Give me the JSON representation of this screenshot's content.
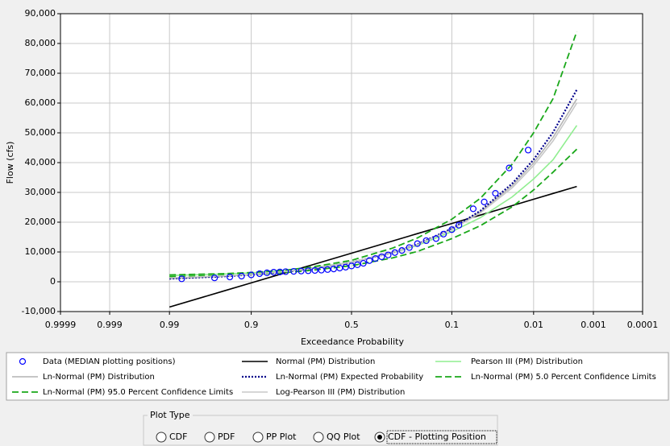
{
  "chart_data": {
    "type": "line",
    "xlabel": "Exceedance Probability",
    "ylabel": "Flow (cfs)",
    "xscale": "normal-probability",
    "xlim": [
      0.9999,
      0.0001
    ],
    "xticks": [
      0.9999,
      0.999,
      0.99,
      0.9,
      0.5,
      0.1,
      0.01,
      0.001,
      0.0001
    ],
    "ylim": [
      -10000,
      90000
    ],
    "yticks": [
      {
        "value": -10000,
        "label": "-10,000"
      },
      0,
      {
        "value": 10000,
        "label": "10,000"
      },
      {
        "value": 20000,
        "label": "20,000"
      },
      {
        "value": 30000,
        "label": "30,000"
      },
      {
        "value": 40000,
        "label": "40,000"
      },
      {
        "value": 50000,
        "label": "50,000"
      },
      {
        "value": 60000,
        "label": "60,000"
      },
      {
        "value": 70000,
        "label": "70,000"
      },
      {
        "value": 80000,
        "label": "80,000"
      },
      {
        "value": 90000,
        "label": "90,000"
      }
    ],
    "grid": true,
    "series": [
      {
        "name": "Data (MEDIAN plotting positions)",
        "color": "#0000ff",
        "style": "marker",
        "x": [
          0.985,
          0.96,
          0.94,
          0.92,
          0.9,
          0.88,
          0.86,
          0.84,
          0.82,
          0.8,
          0.77,
          0.74,
          0.71,
          0.68,
          0.65,
          0.62,
          0.59,
          0.56,
          0.53,
          0.5,
          0.47,
          0.44,
          0.41,
          0.38,
          0.35,
          0.32,
          0.29,
          0.26,
          0.23,
          0.2,
          0.17,
          0.14,
          0.12,
          0.1,
          0.085,
          0.06,
          0.045,
          0.033,
          0.022,
          0.012
        ],
        "values": [
          1000,
          1300,
          1600,
          1900,
          2300,
          2700,
          3000,
          3200,
          3300,
          3400,
          3500,
          3600,
          3700,
          3800,
          3900,
          4100,
          4300,
          4600,
          4900,
          5300,
          5700,
          6200,
          7100,
          7800,
          8400,
          9000,
          9800,
          10500,
          11500,
          12800,
          13800,
          14500,
          16000,
          17500,
          19000,
          24500,
          26800,
          29700,
          38200,
          44200
        ]
      },
      {
        "name": "Normal (PM) Distribution",
        "color": "#000000",
        "style": "solid",
        "x": [
          0.99,
          0.95,
          0.9,
          0.8,
          0.7,
          0.5,
          0.3,
          0.2,
          0.1,
          0.05,
          0.02,
          0.01,
          0.005,
          0.002
        ],
        "values": [
          -8500,
          -3200,
          -380,
          3050,
          5520,
          9600,
          13670,
          16150,
          19570,
          22390,
          25570,
          27690,
          29640,
          31990
        ]
      },
      {
        "name": "Pearson III (PM) Distribution",
        "color": "#90ee90",
        "style": "solid",
        "x": [
          0.99,
          0.95,
          0.9,
          0.8,
          0.7,
          0.5,
          0.3,
          0.2,
          0.1,
          0.05,
          0.02,
          0.01,
          0.005,
          0.002
        ],
        "values": [
          2100,
          2600,
          3000,
          3800,
          4600,
          6600,
          9700,
          12200,
          16800,
          21500,
          28500,
          34500,
          41000,
          52500
        ]
      },
      {
        "name": "Ln-Normal (PM) Distribution",
        "color": "#b4b4b4",
        "style": "solid",
        "x": [
          0.99,
          0.95,
          0.9,
          0.8,
          0.7,
          0.5,
          0.3,
          0.2,
          0.1,
          0.05,
          0.02,
          0.01,
          0.005,
          0.002
        ],
        "values": [
          1060,
          1800,
          2390,
          3370,
          4320,
          6500,
          9790,
          12540,
          17680,
          23460,
          32270,
          39900,
          48490,
          61390
        ]
      },
      {
        "name": "Ln-Normal (PM) Expected Probability",
        "color": "#00008b",
        "style": "dotted",
        "x": [
          0.99,
          0.95,
          0.9,
          0.8,
          0.7,
          0.5,
          0.3,
          0.2,
          0.1,
          0.05,
          0.02,
          0.01,
          0.005,
          0.002
        ],
        "values": [
          1050,
          1790,
          2380,
          3360,
          4320,
          6500,
          9810,
          12600,
          17850,
          23800,
          33000,
          41000,
          50200,
          64500
        ]
      },
      {
        "name": "Ln-Normal (PM) 5.0 Percent Confidence Limits",
        "color": "#1aa81a",
        "style": "dashed",
        "x": [
          0.99,
          0.95,
          0.9,
          0.8,
          0.7,
          0.5,
          0.3,
          0.2,
          0.1,
          0.05,
          0.02,
          0.01,
          0.005,
          0.002
        ],
        "values": [
          1700,
          2100,
          2500,
          3100,
          3800,
          5400,
          8000,
          10200,
          14500,
          18800,
          25200,
          30800,
          36800,
          44500
        ]
      },
      {
        "name": "Ln-Normal (PM) 95.0 Percent Confidence Limits",
        "color": "#1aa81a",
        "style": "dashed",
        "x": [
          0.99,
          0.95,
          0.9,
          0.8,
          0.7,
          0.5,
          0.3,
          0.2,
          0.1,
          0.05,
          0.02,
          0.01,
          0.005,
          0.002
        ],
        "values": [
          2300,
          2700,
          3100,
          3900,
          4900,
          7200,
          11300,
          14700,
          21000,
          28000,
          39500,
          50000,
          61500,
          84000
        ]
      },
      {
        "name": "Log-Pearson III (PM) Distribution",
        "color": "#c8c8c8",
        "style": "solid",
        "x": [
          0.99,
          0.95,
          0.9,
          0.8,
          0.7,
          0.5,
          0.3,
          0.2,
          0.1,
          0.05,
          0.02,
          0.01,
          0.005,
          0.002
        ],
        "values": [
          1300,
          1950,
          2500,
          3450,
          4400,
          6550,
          9800,
          12500,
          17500,
          23100,
          31600,
          39000,
          47300,
          60000
        ]
      }
    ]
  },
  "plot_type": {
    "title": "Plot Type",
    "options": [
      "CDF",
      "PDF",
      "PP Plot",
      "QQ Plot",
      "CDF - Plotting Position"
    ],
    "selected": 4
  }
}
